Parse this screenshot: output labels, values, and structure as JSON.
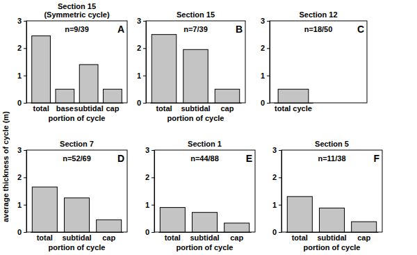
{
  "chart_data": [
    {
      "type": "bar",
      "title": "Section 15",
      "subtitle": "(Symmetric cycle)",
      "annotations": [
        "n=9/39",
        "A"
      ],
      "categories": [
        "total",
        "base",
        "subtidal",
        "cap"
      ],
      "values": [
        2.45,
        0.5,
        1.4,
        0.5
      ],
      "xlabel": "portion of cycle",
      "color": "#c4c4c4",
      "ylim": [
        0,
        3
      ],
      "yticks": [
        0,
        1,
        2,
        3
      ],
      "grid": false
    },
    {
      "type": "bar",
      "title": "Section 15",
      "annotations": [
        "n=7/39",
        "B"
      ],
      "categories": [
        "total",
        "subtidal",
        "cap"
      ],
      "values": [
        2.5,
        1.95,
        0.5
      ],
      "xlabel": "portion of cycle",
      "color": "#c4c4c4",
      "ylim": [
        0,
        3
      ],
      "yticks": [
        0,
        1,
        2,
        3
      ],
      "grid": false
    },
    {
      "type": "bar",
      "title": "Section 12",
      "annotations": [
        "n=18/50",
        "C"
      ],
      "categories": [
        "total cycle"
      ],
      "values": [
        0.5
      ],
      "color": "#c4c4c4",
      "ylim": [
        0,
        3
      ],
      "yticks": [
        0,
        1,
        2,
        3
      ],
      "grid": false
    },
    {
      "type": "bar",
      "title": "Section 7",
      "annotations": [
        "n=52/69",
        "D"
      ],
      "categories": [
        "total",
        "subtidal",
        "cap"
      ],
      "values": [
        1.65,
        1.25,
        0.45
      ],
      "xlabel": "portion of cycle",
      "ylabel": "average thickness of cycle (m)",
      "color": "#c4c4c4",
      "ylim": [
        0,
        3
      ],
      "yticks": [
        0,
        1,
        2,
        3
      ],
      "grid": false
    },
    {
      "type": "bar",
      "title": "Section 1",
      "annotations": [
        "n=44/88",
        "E"
      ],
      "categories": [
        "total",
        "subtidal",
        "cap"
      ],
      "values": [
        0.9,
        0.72,
        0.33
      ],
      "xlabel": "portion of cycle",
      "color": "#c4c4c4",
      "ylim": [
        0,
        3
      ],
      "yticks": [
        0,
        1,
        2,
        3
      ],
      "grid": false
    },
    {
      "type": "bar",
      "title": "Section 5",
      "annotations": [
        "n=11/38",
        "F"
      ],
      "categories": [
        "total",
        "subtidal",
        "cap"
      ],
      "values": [
        1.3,
        0.88,
        0.38
      ],
      "xlabel": "portion of cycle",
      "color": "#c4c4c4",
      "ylim": [
        0,
        3
      ],
      "yticks": [
        0,
        1,
        2,
        3
      ],
      "grid": false
    }
  ]
}
